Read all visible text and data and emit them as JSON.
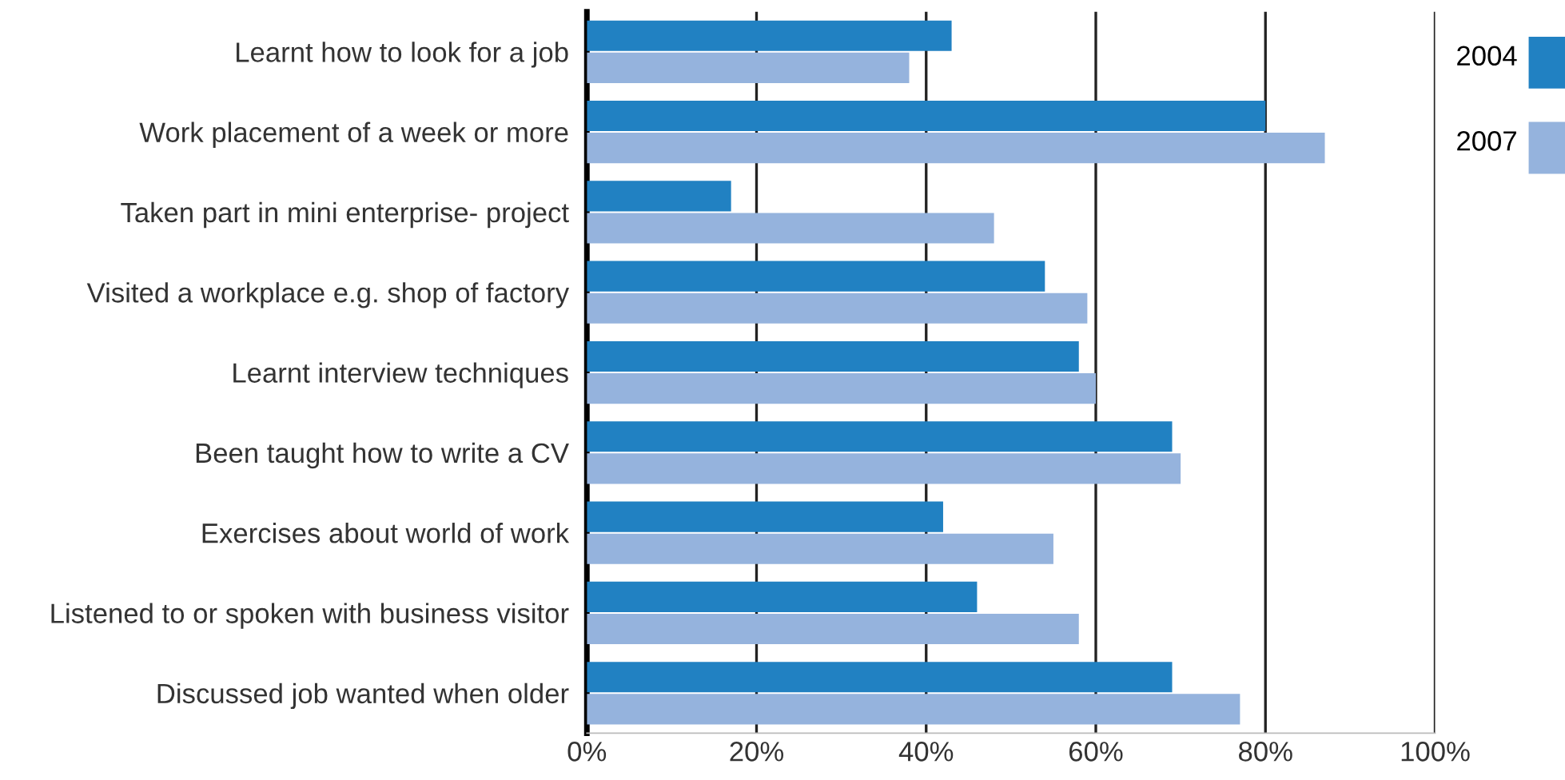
{
  "chart_data": {
    "type": "bar",
    "orientation": "horizontal",
    "categories": [
      "Learnt how to look for a job",
      "Work placement of a week or more",
      "Taken part in mini enterprise- project",
      "Visited a workplace e.g. shop of factory",
      "Learnt interview techniques",
      "Been taught how to write a CV",
      "Exercises about world of work",
      "Listened to or spoken with business visitor",
      "Discussed job wanted when older"
    ],
    "series": [
      {
        "name": "2004",
        "color": "#2181c2",
        "values": [
          43,
          80,
          17,
          54,
          58,
          69,
          42,
          46,
          69
        ]
      },
      {
        "name": "2007",
        "color": "#95b3dd",
        "values": [
          38,
          87,
          48,
          59,
          60,
          70,
          55,
          58,
          77
        ]
      }
    ],
    "xlim": [
      0,
      100
    ],
    "xticks": [
      {
        "value": 0,
        "label": "0%"
      },
      {
        "value": 20,
        "label": "20%"
      },
      {
        "value": 40,
        "label": "40%"
      },
      {
        "value": 60,
        "label": "60%"
      },
      {
        "value": 80,
        "label": "80%"
      },
      {
        "value": 100,
        "label": "100%"
      }
    ],
    "grid": "x",
    "legend": "right"
  }
}
